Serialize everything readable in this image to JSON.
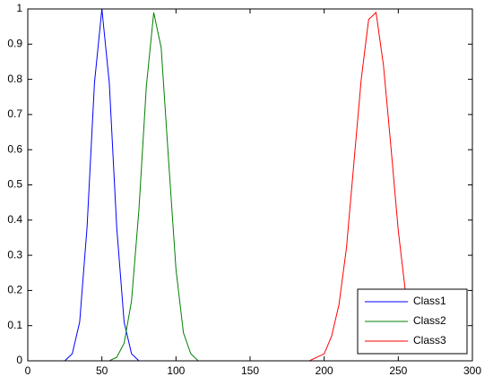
{
  "chart_data": {
    "type": "line",
    "x": [
      0,
      20,
      25,
      30,
      35,
      40,
      45,
      50,
      55,
      60,
      65,
      70,
      75,
      80,
      85,
      90,
      95,
      100,
      105,
      110,
      115,
      120,
      125,
      130,
      135,
      140,
      145,
      150,
      155,
      160,
      165,
      170,
      175,
      180,
      185,
      190,
      195,
      200,
      205,
      210,
      215,
      220,
      225,
      230,
      235,
      240,
      245,
      250,
      255
    ],
    "series": [
      {
        "name": "Class1",
        "color": "#0000ff",
        "values": [
          0,
          0,
          0,
          0.02,
          0.11,
          0.38,
          0.79,
          1,
          0.79,
          0.38,
          0.11,
          0.02,
          0,
          0,
          0,
          0,
          0,
          0,
          0,
          0,
          0,
          0,
          0,
          0,
          0,
          0,
          0,
          0,
          0,
          0,
          0,
          0,
          0,
          0,
          0,
          0,
          0,
          0,
          0,
          0,
          0,
          0,
          0,
          0,
          0,
          0,
          0,
          0,
          0
        ]
      },
      {
        "name": "Class2",
        "color": "#008000",
        "values": [
          0,
          0,
          0,
          0,
          0,
          0,
          0,
          0,
          0,
          0.01,
          0.05,
          0.17,
          0.43,
          0.78,
          0.99,
          0.89,
          0.57,
          0.26,
          0.08,
          0.02,
          0,
          0,
          0,
          0,
          0,
          0,
          0,
          0,
          0,
          0,
          0,
          0,
          0,
          0,
          0,
          0,
          0,
          0,
          0,
          0,
          0,
          0,
          0,
          0,
          0,
          0,
          0,
          0,
          0
        ]
      },
      {
        "name": "Class3",
        "color": "#ff0000",
        "values": [
          0,
          0,
          0,
          0,
          0,
          0,
          0,
          0,
          0,
          0,
          0,
          0,
          0,
          0,
          0,
          0,
          0,
          0,
          0,
          0,
          0,
          0,
          0,
          0,
          0,
          0,
          0,
          0,
          0,
          0,
          0,
          0,
          0,
          0,
          0,
          0,
          0.01,
          0.02,
          0.07,
          0.16,
          0.32,
          0.56,
          0.8,
          0.97,
          0.99,
          0.84,
          0.61,
          0.37,
          0.19
        ]
      }
    ],
    "xlim": [
      0,
      300
    ],
    "xticks": [
      0,
      50,
      100,
      150,
      200,
      250,
      300
    ],
    "ylim": [
      0,
      1
    ],
    "yticks": [
      0,
      0.1,
      0.2,
      0.3,
      0.4,
      0.5,
      0.6,
      0.7,
      0.8,
      0.9,
      1
    ],
    "grid": false,
    "legend": "southeast"
  }
}
